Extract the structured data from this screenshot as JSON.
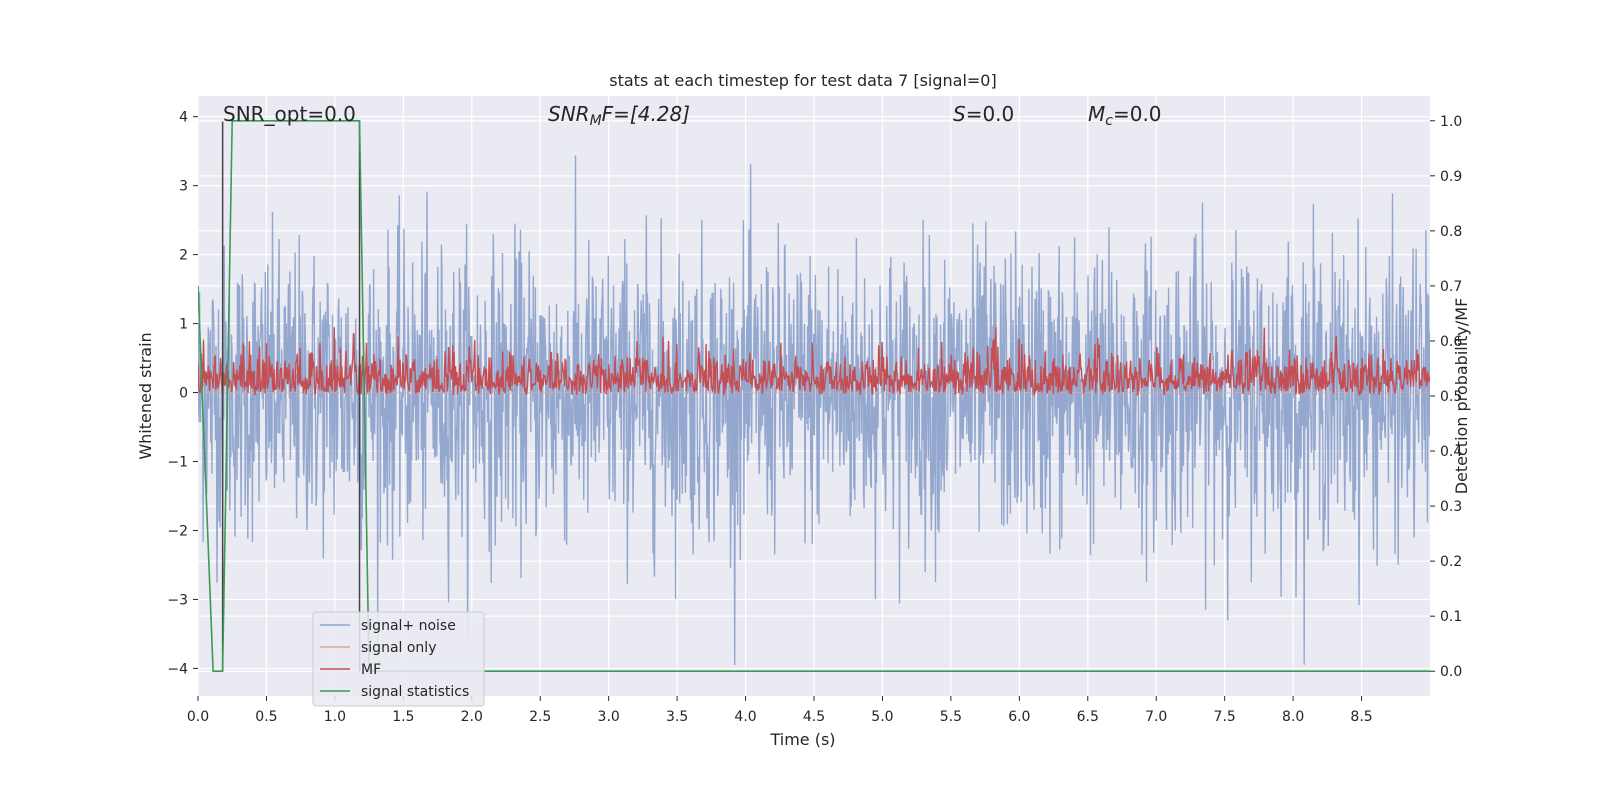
{
  "chart_data": {
    "type": "line",
    "title": "stats at each timestep for test data 7 [signal=0]",
    "xlabel": "Time (s)",
    "ylabel_left": "Whitened strain",
    "ylabel_right": "Detection probability/MF",
    "xlim": [
      0.0,
      9.0
    ],
    "ylim_left": [
      -4.4,
      4.3
    ],
    "ylim_right": [
      -0.045,
      1.045
    ],
    "xticks": [
      "0.0",
      "0.5",
      "1.0",
      "1.5",
      "2.0",
      "2.5",
      "3.0",
      "3.5",
      "4.0",
      "4.5",
      "5.0",
      "5.5",
      "6.0",
      "6.5",
      "7.0",
      "7.5",
      "8.0",
      "8.5"
    ],
    "yticks_left": [
      "4",
      "3",
      "2",
      "1",
      "0",
      "−1",
      "−2",
      "−3",
      "−4"
    ],
    "yticks_right": [
      "1.0",
      "0.9",
      "0.8",
      "0.7",
      "0.6",
      "0.5",
      "0.4",
      "0.3",
      "0.2",
      "0.1",
      "0.0"
    ],
    "grid": true,
    "legend_placement": "lower-left",
    "annotations": {
      "snr_opt": "SNR_opt=0.0",
      "snr_mf_base": "SNR",
      "snr_mf_sub": "M",
      "snr_mf_rest": "F=[4.28]",
      "s_var": "S",
      "s_rest": "=0.0",
      "mc_var": "M",
      "mc_sub": "c",
      "mc_rest": "=0.0"
    },
    "series": [
      {
        "name": "signal+ noise",
        "color": "#8fa4cc",
        "axis": "left",
        "description_range": [
          -3.9,
          3.9
        ],
        "x_range": [
          0.0,
          9.0
        ]
      },
      {
        "name": "signal only",
        "color": "#e8a58a",
        "axis": "left",
        "values": "zero"
      },
      {
        "name": "MF",
        "color": "#c44e52",
        "axis": "right",
        "x_range": [
          0.0,
          9.0
        ],
        "approx_range": [
          0.5,
          0.65
        ]
      },
      {
        "name": "signal statistics",
        "color": "#3d9a55",
        "axis": "right",
        "x": [
          0.0,
          0.11,
          0.18,
          0.25,
          1.18,
          1.25,
          9.0
        ],
        "y": [
          0.7,
          0.0,
          0.0,
          1.0,
          1.0,
          0.0,
          0.0
        ]
      }
    ],
    "markers_vlines": [
      0.18,
      1.18
    ]
  }
}
